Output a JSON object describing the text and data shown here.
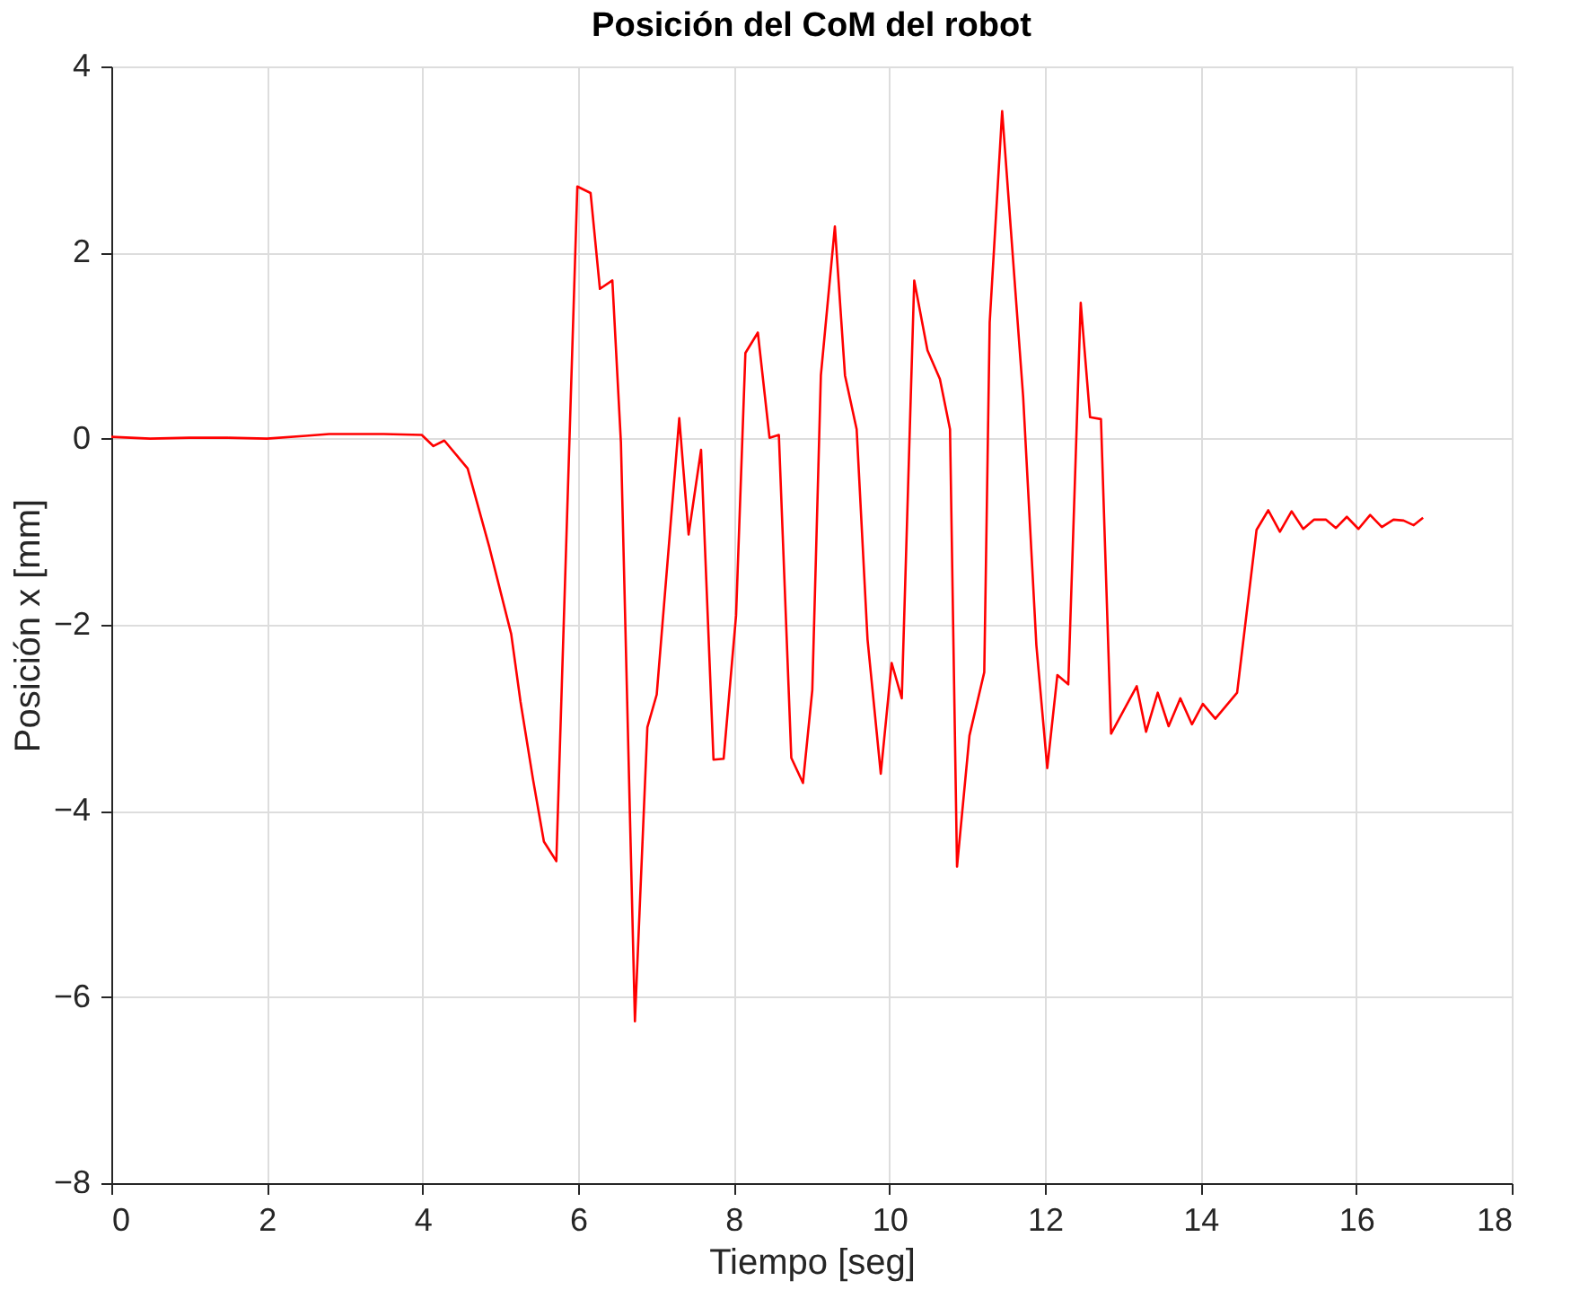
{
  "chart_data": {
    "type": "line",
    "title": "Posición del CoM del robot",
    "xlabel": "Tiempo [seg]",
    "ylabel": "Posición x [mm]",
    "xlim": [
      0,
      18
    ],
    "xticks": [
      0,
      2,
      4,
      6,
      8,
      10,
      12,
      14,
      16,
      18
    ],
    "ylim": [
      -8,
      4
    ],
    "yticks": [
      -8,
      -6,
      -4,
      -2,
      0,
      2,
      4
    ],
    "grid": true,
    "marker": "none",
    "line_style": "solid",
    "series": [
      {
        "color": "#ff0000",
        "x": [
          0,
          0.5,
          1,
          1.5,
          2,
          2.5,
          2.8,
          3,
          3.5,
          3.99,
          4.14,
          4.28,
          4.58,
          4.86,
          5.14,
          5.26,
          5.42,
          5.56,
          5.72,
          5.99,
          6.16,
          6.28,
          6.44,
          6.55,
          6.73,
          6.89,
          7.01,
          7.3,
          7.42,
          7.58,
          7.74,
          7.87,
          8.03,
          8.15,
          8.31,
          8.46,
          8.58,
          8.74,
          8.89,
          9.01,
          9.12,
          9.3,
          9.43,
          9.58,
          9.72,
          9.89,
          10.03,
          10.16,
          10.32,
          10.49,
          10.65,
          10.78,
          10.87,
          11.03,
          11.22,
          11.29,
          11.45,
          11.72,
          11.89,
          12.03,
          12.16,
          12.3,
          12.46,
          12.58,
          12.72,
          12.85,
          13.18,
          13.3,
          13.45,
          13.59,
          13.74,
          13.89,
          14.03,
          14.19,
          14.47,
          14.72,
          14.87,
          15.02,
          15.17,
          15.32,
          15.46,
          15.61,
          15.74,
          15.88,
          16.03,
          16.18,
          16.33,
          16.48,
          16.61,
          16.74,
          16.86
        ],
        "values": [
          0.02,
          0.0,
          0.01,
          0.01,
          0.0,
          0.03,
          0.05,
          0.05,
          0.05,
          0.04,
          -0.08,
          -0.02,
          -0.32,
          -1.17,
          -2.1,
          -2.83,
          -3.66,
          -4.33,
          -4.54,
          2.71,
          2.64,
          1.61,
          1.7,
          -0.04,
          -6.26,
          -3.1,
          -2.75,
          0.22,
          -1.03,
          -0.12,
          -3.45,
          -3.44,
          -1.9,
          0.92,
          1.14,
          0.01,
          0.04,
          -3.43,
          -3.7,
          -2.7,
          0.68,
          2.28,
          0.68,
          0.1,
          -2.16,
          -3.6,
          -2.41,
          -2.79,
          1.7,
          0.95,
          0.64,
          0.1,
          -4.6,
          -3.19,
          -2.51,
          1.25,
          3.52,
          0.45,
          -2.22,
          -3.54,
          -2.54,
          -2.64,
          1.46,
          0.23,
          0.21,
          -3.17,
          -2.66,
          -3.15,
          -2.73,
          -3.09,
          -2.79,
          -3.07,
          -2.85,
          -3.01,
          -2.73,
          -0.98,
          -0.77,
          -1.0,
          -0.78,
          -0.97,
          -0.87,
          -0.87,
          -0.96,
          -0.84,
          -0.97,
          -0.82,
          -0.95,
          -0.87,
          -0.88,
          -0.93,
          -0.85
        ]
      }
    ]
  }
}
